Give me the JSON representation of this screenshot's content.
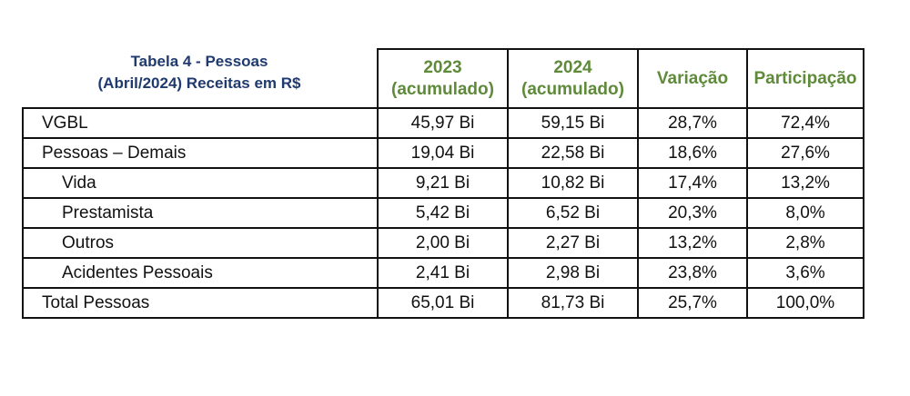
{
  "caption": {
    "line1": "Tabela 4 - Pessoas",
    "line2": "(Abril/2024) Receitas em R$"
  },
  "headers": {
    "col2023_year": "2023",
    "col2023_sub": "(acumulado)",
    "col2024_year": "2024",
    "col2024_sub": "(acumulado)",
    "variacao": "Variação",
    "participacao": "Participação"
  },
  "rows": [
    {
      "label": "VGBL",
      "v2023": "45,97 Bi",
      "v2024": "59,15 Bi",
      "variacao": "28,7%",
      "participacao": "72,4%"
    },
    {
      "label": "Pessoas – Demais",
      "v2023": "19,04 Bi",
      "v2024": "22,58 Bi",
      "variacao": "18,6%",
      "participacao": "27,6%"
    },
    {
      "label": "Vida",
      "v2023": "9,21 Bi",
      "v2024": "10,82 Bi",
      "variacao": "17,4%",
      "participacao": "13,2%"
    },
    {
      "label": "Prestamista",
      "v2023": "5,42 Bi",
      "v2024": "6,52 Bi",
      "variacao": "20,3%",
      "participacao": "8,0%"
    },
    {
      "label": "Outros",
      "v2023": "2,00 Bi",
      "v2024": "2,27 Bi",
      "variacao": "13,2%",
      "participacao": "2,8%"
    },
    {
      "label": "Acidentes Pessoais",
      "v2023": "2,41 Bi",
      "v2024": "2,98 Bi",
      "variacao": "23,8%",
      "participacao": "3,6%"
    },
    {
      "label": "Total Pessoas",
      "v2023": "65,01 Bi",
      "v2024": "81,73 Bi",
      "variacao": "25,7%",
      "participacao": "100,0%"
    }
  ]
}
